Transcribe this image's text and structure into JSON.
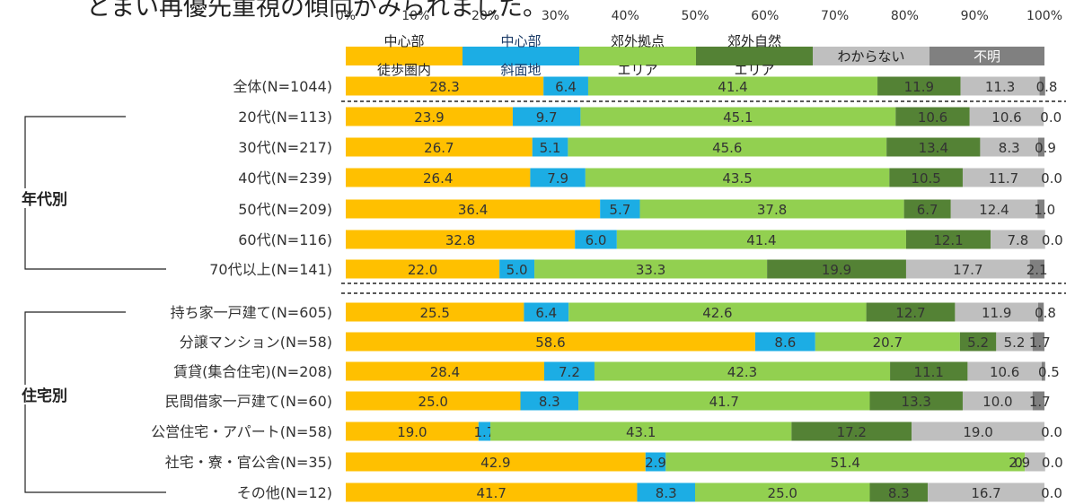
{
  "title": "とまい再優先重視の傾向がみられました。",
  "chart_data": {
    "type": "bar",
    "orientation": "horizontal-stacked-100",
    "x_ticks": [
      "0%",
      "10%",
      "20%",
      "30%",
      "40%",
      "50%",
      "60%",
      "70%",
      "80%",
      "90%",
      "100%"
    ],
    "xlim": [
      0,
      100
    ],
    "legend": [
      {
        "label": "中心部\n徒歩圏内",
        "color": "#FFC000"
      },
      {
        "label": "中心部\n斜面地",
        "color": "#1CADE4"
      },
      {
        "label": "郊外拠点\nエリア",
        "color": "#92D050"
      },
      {
        "label": "郊外自然\nエリア",
        "color": "#548235"
      },
      {
        "label": "わからない",
        "color": "#BFBFBF"
      },
      {
        "label": "不明",
        "color": "#808080"
      }
    ],
    "legend_position": "top",
    "categories": [
      "全体(N=1044)",
      "20代(N=113)",
      "30代(N=217)",
      "40代(N=239)",
      "50代(N=209)",
      "60代(N=116)",
      "70代以上(N=141)",
      "持ち家一戸建て(N=605)",
      "分譲マンション(N=58)",
      "賃貸(集合住宅)(N=208)",
      "民間借家一戸建て(N=60)",
      "公営住宅・アパート(N=58)",
      "社宅・寮・官公舎(N=35)",
      "その他(N=12)"
    ],
    "rows": [
      [
        28.3,
        6.4,
        41.4,
        11.9,
        11.3,
        0.8
      ],
      [
        23.9,
        9.7,
        45.1,
        10.6,
        10.6,
        0.0
      ],
      [
        26.7,
        5.1,
        45.6,
        13.4,
        8.3,
        0.9
      ],
      [
        26.4,
        7.9,
        43.5,
        10.5,
        11.7,
        0.0
      ],
      [
        36.4,
        5.7,
        37.8,
        6.7,
        12.4,
        1.0
      ],
      [
        32.8,
        6.0,
        41.4,
        12.1,
        7.8,
        0.0
      ],
      [
        22.0,
        5.0,
        33.3,
        19.9,
        17.7,
        2.1
      ],
      [
        25.5,
        6.4,
        42.6,
        12.7,
        11.9,
        0.8
      ],
      [
        58.6,
        8.6,
        20.7,
        5.2,
        5.2,
        1.7
      ],
      [
        28.4,
        7.2,
        42.3,
        11.1,
        10.6,
        0.5
      ],
      [
        25.0,
        8.3,
        41.7,
        13.3,
        10.0,
        1.7
      ],
      [
        19.0,
        1.7,
        43.1,
        17.2,
        19.0,
        0.0
      ],
      [
        42.9,
        2.9,
        51.4,
        0.0,
        2.9,
        0.0
      ],
      [
        41.7,
        8.3,
        25.0,
        8.3,
        16.7,
        0.0
      ]
    ],
    "groups": [
      {
        "label": "年代別",
        "from": 1,
        "to": 6
      },
      {
        "label": "住宅別",
        "from": 7,
        "to": 13
      }
    ],
    "grid": false
  }
}
